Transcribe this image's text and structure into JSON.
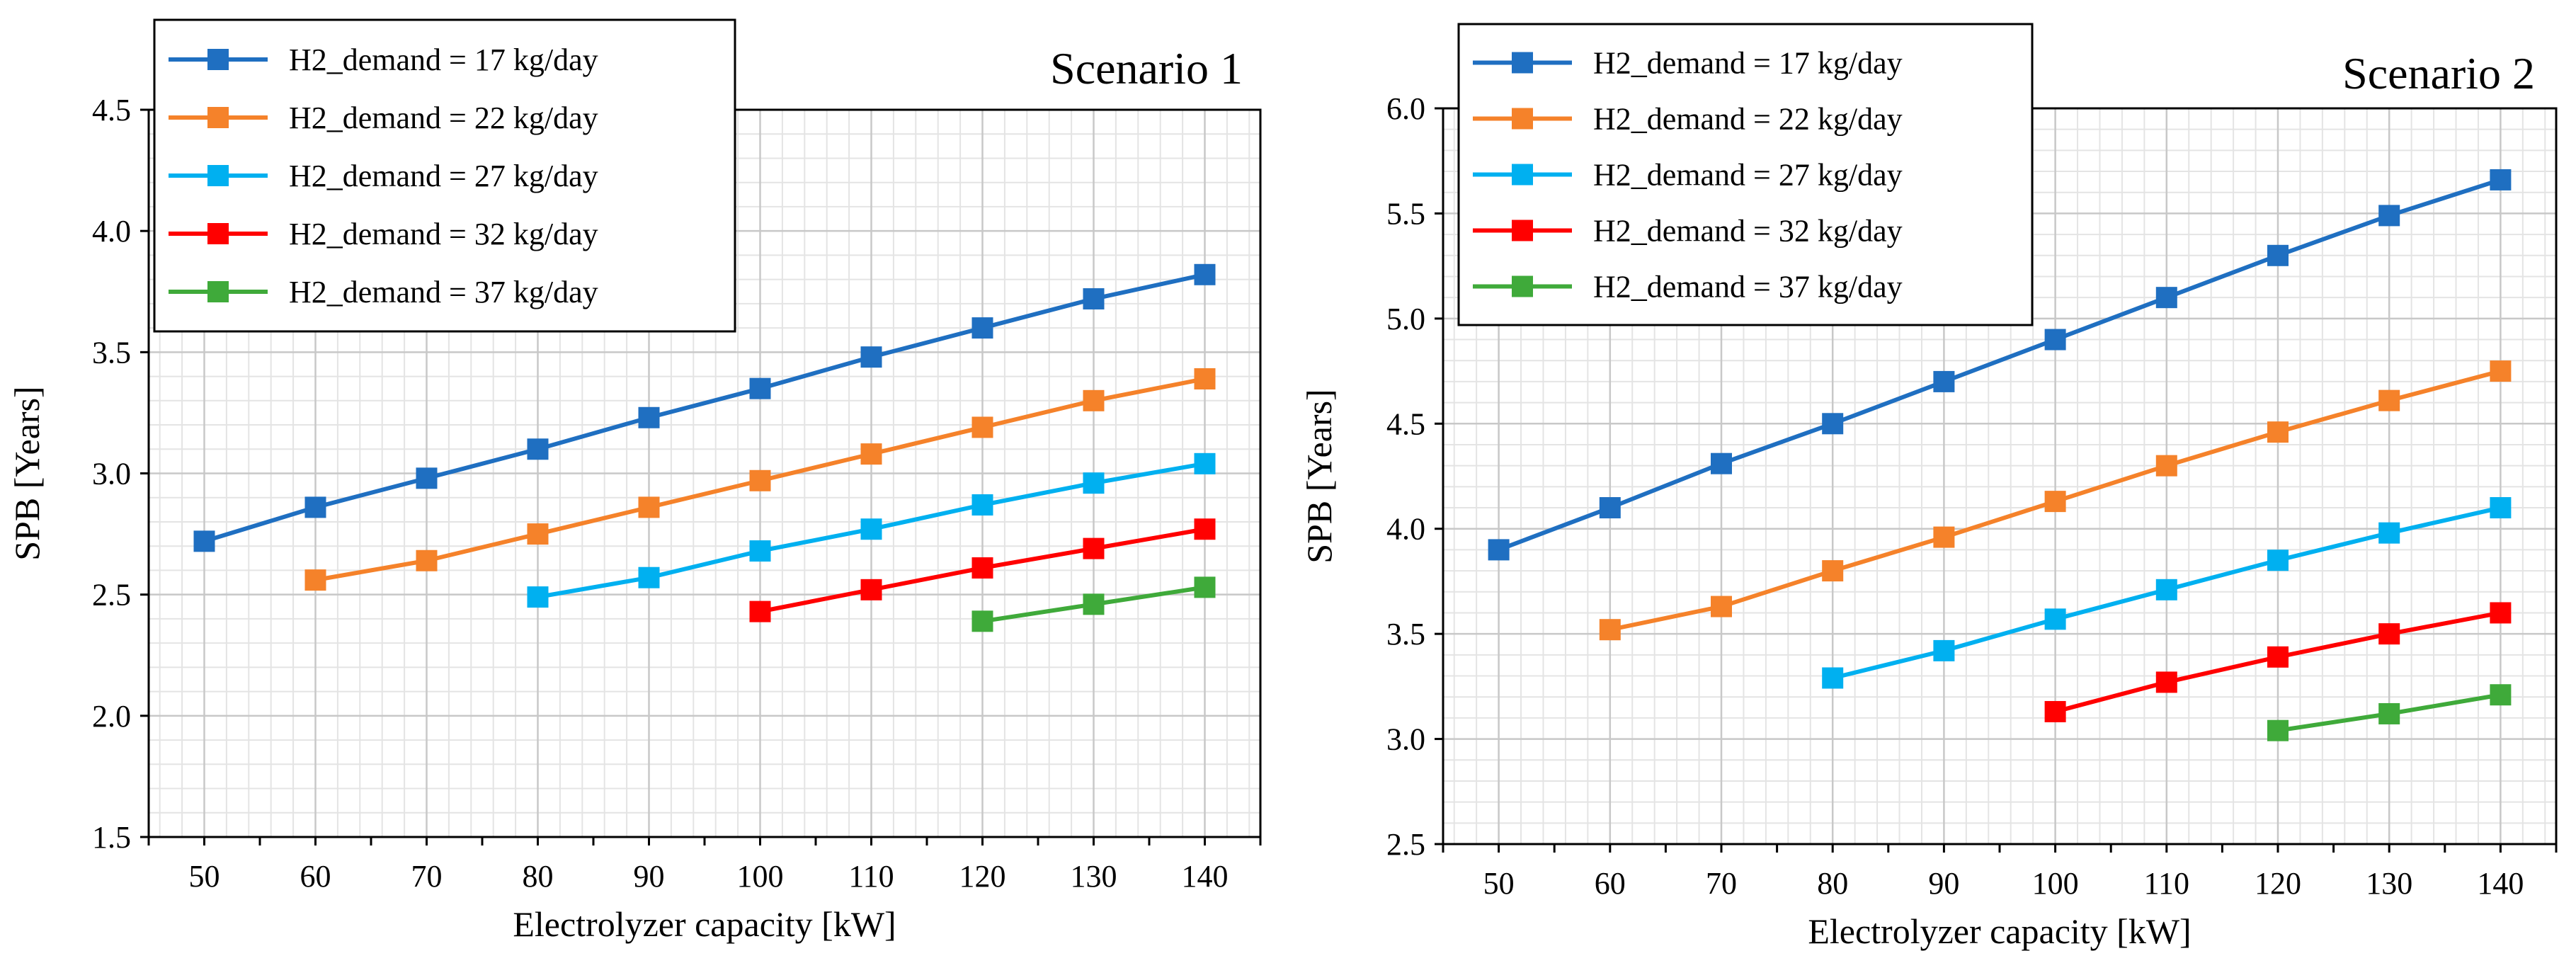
{
  "chart_data": [
    {
      "type": "line",
      "title": "Scenario 1",
      "xlabel": "Electrolyzer capacity [kW]",
      "ylabel": "SPB [Years]",
      "xlim": [
        45,
        145
      ],
      "ylim": [
        1.5,
        4.5
      ],
      "x_ticks": [
        "50",
        "60",
        "70",
        "80",
        "90",
        "100",
        "110",
        "120",
        "130",
        "140"
      ],
      "y_ticks": [
        "1.5",
        "2.0",
        "2.5",
        "3.0",
        "3.5",
        "4.0",
        "4.5"
      ],
      "grid": true,
      "legend_position": "top-left",
      "series": [
        {
          "name": "H2_demand = 17 kg/day",
          "color": "#1F6FC1",
          "x": [
            50,
            60,
            70,
            80,
            90,
            100,
            110,
            120,
            130,
            140
          ],
          "values": [
            2.72,
            2.86,
            2.98,
            3.1,
            3.23,
            3.35,
            3.48,
            3.6,
            3.72,
            3.82
          ]
        },
        {
          "name": "H2_demand = 22 kg/day",
          "color": "#F5822A",
          "x": [
            60,
            70,
            80,
            90,
            100,
            110,
            120,
            130,
            140
          ],
          "values": [
            2.56,
            2.64,
            2.75,
            2.86,
            2.97,
            3.08,
            3.19,
            3.3,
            3.39
          ]
        },
        {
          "name": "H2_demand = 27 kg/day",
          "color": "#00B0F0",
          "x": [
            80,
            90,
            100,
            110,
            120,
            130,
            140
          ],
          "values": [
            2.49,
            2.57,
            2.68,
            2.77,
            2.87,
            2.96,
            3.04
          ]
        },
        {
          "name": "H2_demand = 32 kg/day",
          "color": "#FF0000",
          "x": [
            100,
            110,
            120,
            130,
            140
          ],
          "values": [
            2.43,
            2.52,
            2.61,
            2.69,
            2.77
          ]
        },
        {
          "name": "H2_demand = 37 kg/day",
          "color": "#3FAA3A",
          "x": [
            120,
            130,
            140
          ],
          "values": [
            2.39,
            2.46,
            2.53
          ]
        }
      ]
    },
    {
      "type": "line",
      "title": "Scenario 2",
      "xlabel": "Electrolyzer capacity [kW]",
      "ylabel": "SPB [Years]",
      "xlim": [
        45,
        145
      ],
      "ylim": [
        2.5,
        6.0
      ],
      "x_ticks": [
        "50",
        "60",
        "70",
        "80",
        "90",
        "100",
        "110",
        "120",
        "130",
        "140"
      ],
      "y_ticks": [
        "2.5",
        "3.0",
        "3.5",
        "4.0",
        "4.5",
        "5.0",
        "5.5",
        "6.0"
      ],
      "grid": true,
      "legend_position": "top-left",
      "series": [
        {
          "name": "H2_demand = 17 kg/day",
          "color": "#1F6FC1",
          "x": [
            50,
            60,
            70,
            80,
            90,
            100,
            110,
            120,
            130,
            140
          ],
          "values": [
            3.9,
            4.1,
            4.31,
            4.5,
            4.7,
            4.9,
            5.1,
            5.3,
            5.49,
            5.66
          ]
        },
        {
          "name": "H2_demand = 22 kg/day",
          "color": "#F5822A",
          "x": [
            60,
            70,
            80,
            90,
            100,
            110,
            120,
            130,
            140
          ],
          "values": [
            3.52,
            3.63,
            3.8,
            3.96,
            4.13,
            4.3,
            4.46,
            4.61,
            4.75
          ]
        },
        {
          "name": "H2_demand = 27 kg/day",
          "color": "#00B0F0",
          "x": [
            80,
            90,
            100,
            110,
            120,
            130,
            140
          ],
          "values": [
            3.29,
            3.42,
            3.57,
            3.71,
            3.85,
            3.98,
            4.1
          ]
        },
        {
          "name": "H2_demand = 32 kg/day",
          "color": "#FF0000",
          "x": [
            100,
            110,
            120,
            130,
            140
          ],
          "values": [
            3.13,
            3.27,
            3.39,
            3.5,
            3.6
          ]
        },
        {
          "name": "H2_demand = 37 kg/day",
          "color": "#3FAA3A",
          "x": [
            120,
            130,
            140
          ],
          "values": [
            3.04,
            3.12,
            3.21
          ]
        }
      ]
    }
  ]
}
